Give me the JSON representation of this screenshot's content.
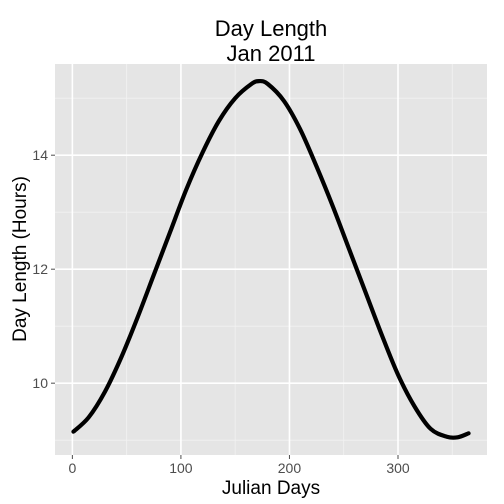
{
  "chart_data": {
    "type": "line",
    "title": [
      "Day Length",
      "Jan 2011"
    ],
    "xlabel": "Julian Days",
    "ylabel": "Day Length (Hours)",
    "xlim": [
      -16,
      382
    ],
    "ylim": [
      8.74,
      15.6
    ],
    "x_ticks": [
      0,
      100,
      200,
      300
    ],
    "y_ticks": [
      10,
      12,
      14
    ],
    "grid": true,
    "colors": {
      "panel_background": "#e5e5e5",
      "grid_major": "#ffffff",
      "line": "#000000",
      "tick_label": "#4d4d4d"
    },
    "series": [
      {
        "x": [
          1,
          15,
          30,
          45,
          60,
          75,
          90,
          105,
          120,
          135,
          150,
          165,
          172,
          180,
          195,
          210,
          225,
          240,
          255,
          270,
          285,
          300,
          315,
          330,
          345,
          355,
          365
        ],
        "y": [
          9.15,
          9.4,
          9.85,
          10.45,
          11.15,
          11.9,
          12.65,
          13.4,
          14.05,
          14.6,
          15.0,
          15.25,
          15.3,
          15.25,
          14.95,
          14.45,
          13.8,
          13.1,
          12.35,
          11.6,
          10.85,
          10.15,
          9.6,
          9.2,
          9.06,
          9.05,
          9.12
        ]
      }
    ]
  }
}
